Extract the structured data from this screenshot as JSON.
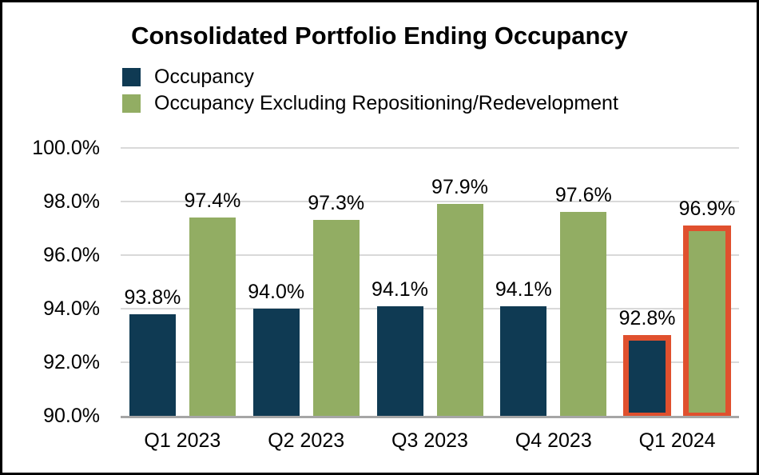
{
  "title": "Consolidated Portfolio Ending Occupancy",
  "colors": {
    "occupancy_bar": "#0f3a53",
    "excluding_bar": "#92ad63",
    "highlight_outline": "#e0502e",
    "gridline": "#d9d9d9",
    "axis_line": "#a6a6a6",
    "frame_border": "#000000",
    "background": "#ffffff",
    "text": "#000000"
  },
  "chart_data": {
    "type": "bar",
    "title": "Consolidated Portfolio Ending Occupancy",
    "xlabel": "",
    "ylabel": "",
    "categories": [
      "Q1 2023",
      "Q2 2023",
      "Q3 2023",
      "Q4 2023",
      "Q1 2024"
    ],
    "series": [
      {
        "name": "Occupancy",
        "color": "#0f3a53",
        "values": [
          93.8,
          94.0,
          94.1,
          94.1,
          92.8
        ],
        "labels": [
          "93.8%",
          "94.0%",
          "94.1%",
          "94.1%",
          "92.8%"
        ]
      },
      {
        "name": "Occupancy Excluding Repositioning/Redevelopment",
        "color": "#92ad63",
        "values": [
          97.4,
          97.3,
          97.9,
          97.6,
          96.9
        ],
        "labels": [
          "97.4%",
          "97.3%",
          "97.9%",
          "97.6%",
          "96.9%"
        ]
      }
    ],
    "y_axis": {
      "min": 90,
      "max": 100,
      "tick_step": 2,
      "ticks": [
        "100.0%",
        "98.0%",
        "96.0%",
        "94.0%",
        "92.0%",
        "90.0%"
      ]
    },
    "highlight": {
      "category_index": 4,
      "category": "Q1 2024",
      "color": "#e0502e"
    },
    "grid": true,
    "legend_position": "top-left"
  }
}
